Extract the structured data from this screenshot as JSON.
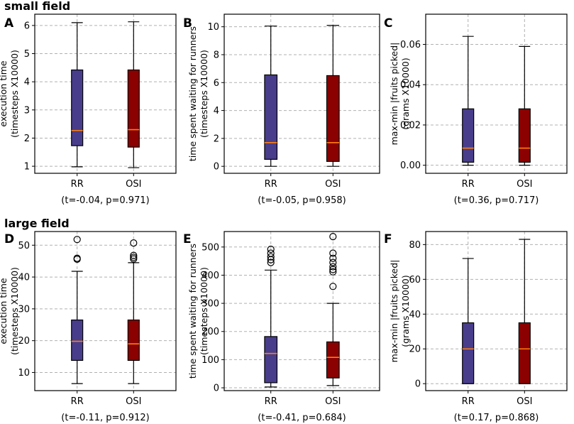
{
  "figure": {
    "section_labels": [
      "small field",
      "large field"
    ]
  },
  "colors": {
    "RR": "#483d8b",
    "OSI": "#8b0000",
    "median": "#ff7f0e",
    "grid": "#b0b0b0"
  },
  "chart_data": [
    {
      "panel": "A",
      "section": "small field",
      "type": "box",
      "ylabel": [
        "execution time",
        "(timesteps X10000)"
      ],
      "categories": [
        "RR",
        "OSI"
      ],
      "ylim": [
        0.75,
        6.4
      ],
      "yticks": [
        1,
        2,
        3,
        4,
        5,
        6
      ],
      "ytick_labels": [
        "1",
        "2",
        "3",
        "4",
        "5",
        "6"
      ],
      "grid": true,
      "boxes": [
        {
          "label": "RR",
          "whislo": 0.98,
          "q1": 1.73,
          "med": 2.27,
          "q3": 4.42,
          "whishi": 6.1,
          "fliers": []
        },
        {
          "label": "OSI",
          "whislo": 0.95,
          "q1": 1.68,
          "med": 2.3,
          "q3": 4.42,
          "whishi": 6.13,
          "fliers": []
        }
      ],
      "stat": "(t=-0.04, p=0.971)"
    },
    {
      "panel": "B",
      "section": "small field",
      "type": "box",
      "ylabel": [
        "time spent waiting for runners",
        "(timesteps X10000)"
      ],
      "categories": [
        "RR",
        "OSI"
      ],
      "ylim": [
        -0.5,
        10.9
      ],
      "yticks": [
        0,
        2,
        4,
        6,
        8,
        10
      ],
      "ytick_labels": [
        "0",
        "2",
        "4",
        "6",
        "8",
        "10"
      ],
      "grid": true,
      "boxes": [
        {
          "label": "RR",
          "whislo": 0.0,
          "q1": 0.5,
          "med": 1.7,
          "q3": 6.55,
          "whishi": 10.05,
          "fliers": []
        },
        {
          "label": "OSI",
          "whislo": 0.0,
          "q1": 0.35,
          "med": 1.7,
          "q3": 6.5,
          "whishi": 10.1,
          "fliers": []
        }
      ],
      "stat": "(t=-0.05, p=0.958)"
    },
    {
      "panel": "C",
      "section": "small field",
      "type": "box",
      "ylabel": [
        "max-min |fruits picked|",
        "(grams X10000)"
      ],
      "categories": [
        "RR",
        "OSI"
      ],
      "ylim": [
        -0.004,
        0.075
      ],
      "yticks": [
        0.0,
        0.02,
        0.04,
        0.06
      ],
      "ytick_labels": [
        "0.00",
        "0.02",
        "0.04",
        "0.06"
      ],
      "grid": true,
      "boxes": [
        {
          "label": "RR",
          "whislo": 0.0,
          "q1": 0.0015,
          "med": 0.0085,
          "q3": 0.028,
          "whishi": 0.064,
          "fliers": []
        },
        {
          "label": "OSI",
          "whislo": 0.0,
          "q1": 0.0015,
          "med": 0.0085,
          "q3": 0.028,
          "whishi": 0.059,
          "fliers": []
        }
      ],
      "stat": "(t=0.36, p=0.717)"
    },
    {
      "panel": "D",
      "section": "large field",
      "type": "box",
      "ylabel": [
        "execution time",
        "(timesteps X10000)"
      ],
      "categories": [
        "RR",
        "OSI"
      ],
      "ylim": [
        4.3,
        54.3
      ],
      "yticks": [
        10,
        20,
        30,
        40,
        50
      ],
      "ytick_labels": [
        "10",
        "20",
        "30",
        "40",
        "50"
      ],
      "grid": true,
      "boxes": [
        {
          "label": "RR",
          "whislo": 6.5,
          "q1": 13.8,
          "med": 19.8,
          "q3": 26.5,
          "whishi": 41.8,
          "fliers": [
            45.6,
            45.9,
            51.8
          ]
        },
        {
          "label": "OSI",
          "whislo": 6.5,
          "q1": 13.8,
          "med": 19.0,
          "q3": 26.5,
          "whishi": 44.5,
          "fliers": [
            45.7,
            46.2,
            46.8,
            50.7
          ]
        }
      ],
      "stat": "(t=-0.11, p=0.912)"
    },
    {
      "panel": "E",
      "section": "large field",
      "type": "box",
      "ylabel": [
        "time spent waiting for runners",
        "(timesteps X10000)"
      ],
      "categories": [
        "RR",
        "OSI"
      ],
      "ylim": [
        -10,
        555
      ],
      "yticks": [
        0,
        100,
        200,
        300,
        400,
        500
      ],
      "ytick_labels": [
        "0",
        "100",
        "200",
        "300",
        "400",
        "500"
      ],
      "grid": true,
      "boxes": [
        {
          "label": "RR",
          "whislo": 3,
          "q1": 18,
          "med": 122,
          "q3": 182,
          "whishi": 418,
          "fliers": [
            445,
            455,
            465,
            478,
            492
          ]
        },
        {
          "label": "OSI",
          "whislo": 8,
          "q1": 35,
          "med": 108,
          "q3": 163,
          "whishi": 300,
          "fliers": [
            360,
            412,
            420,
            430,
            445,
            460,
            478,
            537
          ]
        }
      ],
      "stat": "(t=-0.41, p=0.684)"
    },
    {
      "panel": "F",
      "section": "large field",
      "type": "box",
      "ylabel": [
        "max-min |fruits picked|",
        "(grams X10000)"
      ],
      "categories": [
        "RR",
        "OSI"
      ],
      "ylim": [
        -4,
        87.5
      ],
      "yticks": [
        0,
        20,
        40,
        60,
        80
      ],
      "ytick_labels": [
        "0",
        "20",
        "40",
        "60",
        "80"
      ],
      "grid": true,
      "boxes": [
        {
          "label": "RR",
          "whislo": 0,
          "q1": 0,
          "med": 20,
          "q3": 35,
          "whishi": 72,
          "fliers": []
        },
        {
          "label": "OSI",
          "whislo": 0,
          "q1": 0,
          "med": 20,
          "q3": 35,
          "whishi": 83,
          "fliers": []
        }
      ],
      "stat": "(t=0.17, p=0.868)"
    }
  ]
}
